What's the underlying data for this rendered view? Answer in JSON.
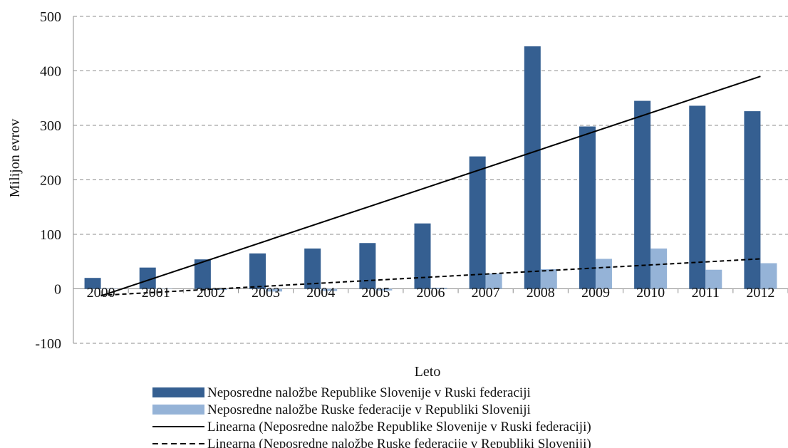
{
  "chart_data": {
    "type": "bar",
    "title": "",
    "xlabel": "Leto",
    "ylabel": "Milijon evrov",
    "ylim": [
      -100,
      500
    ],
    "yticks": [
      -100,
      0,
      100,
      200,
      300,
      400,
      500
    ],
    "grid": true,
    "legend_position": "bottom",
    "categories": [
      "2000",
      "2001",
      "2002",
      "2003",
      "2004",
      "2005",
      "2006",
      "2007",
      "2008",
      "2009",
      "2010",
      "2011",
      "2012"
    ],
    "series": [
      {
        "name": "Neposredne naložbe Republike Slovenije v Ruski federaciji",
        "color": "#355f91",
        "values": [
          20,
          39,
          54,
          65,
          74,
          84,
          120,
          243,
          445,
          298,
          345,
          336,
          326
        ]
      },
      {
        "name": "Neposredne naložbe Ruske federacije v Republiki Sloveniji",
        "color": "#95b3d7",
        "values": [
          0,
          0,
          -2,
          -5,
          -4,
          -3,
          2,
          28,
          36,
          55,
          74,
          35,
          47
        ]
      }
    ],
    "trendlines": [
      {
        "name": "Linearna (Neposredne naložbe Republike Slovenije v Ruski federaciji)",
        "style": "solid",
        "color": "#000000",
        "start": -13,
        "end": 390
      },
      {
        "name": "Linearna (Neposredne naložbe Ruske federacije v Republiki Sloveniji)",
        "style": "dashed",
        "color": "#000000",
        "start": -12,
        "end": 55
      }
    ]
  }
}
